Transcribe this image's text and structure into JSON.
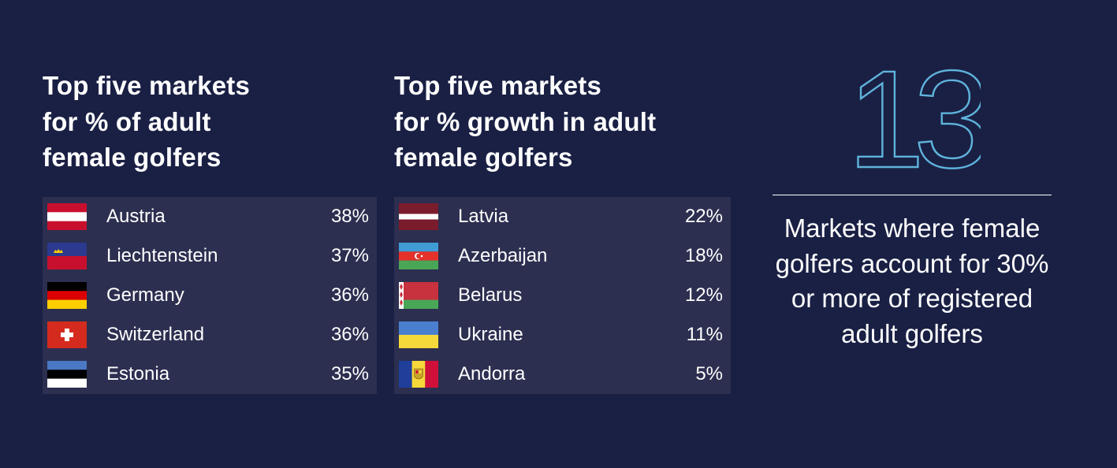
{
  "left_panel": {
    "heading_lines": [
      "Top five markets",
      "for % of adult",
      "female golfers"
    ],
    "rows": [
      {
        "flag_icon": "austria-flag-icon",
        "country": "Austria",
        "value": "38%"
      },
      {
        "flag_icon": "liechtenstein-flag-icon",
        "country": "Liechtenstein",
        "value": "37%"
      },
      {
        "flag_icon": "germany-flag-icon",
        "country": "Germany",
        "value": "36%"
      },
      {
        "flag_icon": "switzerland-flag-icon",
        "country": "Switzerland",
        "value": "36%"
      },
      {
        "flag_icon": "estonia-flag-icon",
        "country": "Estonia",
        "value": "35%"
      }
    ]
  },
  "middle_panel": {
    "heading_lines": [
      "Top five markets",
      "for % growth in adult",
      "female golfers"
    ],
    "rows": [
      {
        "flag_icon": "latvia-flag-icon",
        "country": "Latvia",
        "value": "22%"
      },
      {
        "flag_icon": "azerbaijan-flag-icon",
        "country": "Azerbaijan",
        "value": "18%"
      },
      {
        "flag_icon": "belarus-flag-icon",
        "country": "Belarus",
        "value": "12%"
      },
      {
        "flag_icon": "ukraine-flag-icon",
        "country": "Ukraine",
        "value": "11%"
      },
      {
        "flag_icon": "andorra-flag-icon",
        "country": "Andorra",
        "value": "5%"
      }
    ]
  },
  "right_panel": {
    "big_number": "13",
    "caption_lines": [
      "Markets where female",
      "golfers account for 30%",
      "or more of registered",
      "adult golfers"
    ]
  },
  "colors": {
    "background": "#1a2044",
    "table_background": "#2c2f50",
    "number_outline": "#5fb4dc",
    "text": "#ffffff"
  }
}
